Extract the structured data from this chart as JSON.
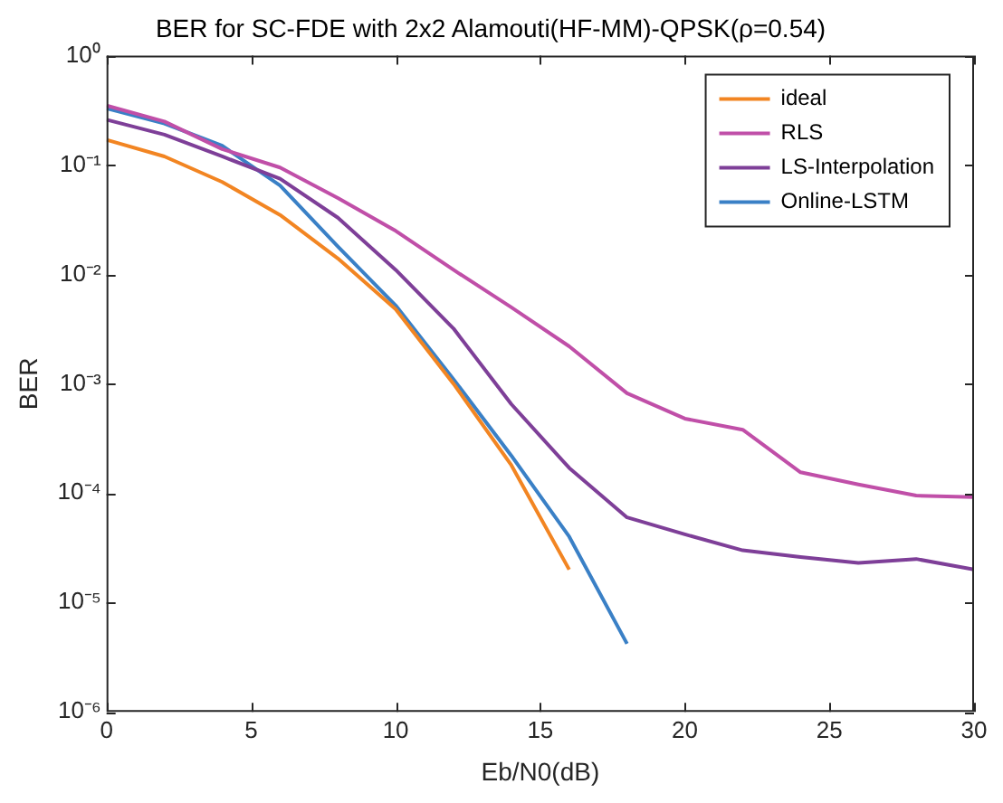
{
  "chart_data": {
    "type": "line",
    "title": "BER for SC-FDE with 2x2 Alamouti(HF-MM)-QPSK(ρ=0.54)",
    "xlabel": "Eb/N0(dB)",
    "ylabel": "BER",
    "log": "y",
    "grid": false,
    "legend": "top right",
    "marker": "none",
    "line_style": "solid",
    "xlim": [
      0,
      30
    ],
    "xticks": [
      0,
      5,
      10,
      15,
      20,
      25,
      30
    ],
    "ylim": [
      1e-06,
      1
    ],
    "yticks": [
      {
        "value": 1e-06,
        "label": "10⁻⁶"
      },
      {
        "value": 1e-05,
        "label": "10⁻⁵"
      },
      {
        "value": 0.0001,
        "label": "10⁻⁴"
      },
      {
        "value": 0.001,
        "label": "10⁻³"
      },
      {
        "value": 0.01,
        "label": "10⁻²"
      },
      {
        "value": 0.1,
        "label": "10⁻¹"
      },
      {
        "value": 1,
        "label": "10⁰"
      }
    ],
    "series": [
      {
        "name": "ideal",
        "color": "#f28522",
        "x": [
          0,
          2,
          4,
          6,
          8,
          10,
          12,
          14,
          16
        ],
        "values": [
          0.17,
          0.12,
          0.07,
          0.035,
          0.014,
          0.0048,
          0.001,
          0.00018,
          2e-05
        ]
      },
      {
        "name": "RLS",
        "color": "#c04fa8",
        "x": [
          0,
          2,
          4,
          6,
          8,
          10,
          12,
          14,
          16,
          18,
          20,
          22,
          24,
          26,
          28,
          30
        ],
        "values": [
          0.35,
          0.25,
          0.14,
          0.095,
          0.05,
          0.025,
          0.011,
          0.005,
          0.0022,
          0.00082,
          0.00048,
          0.00038,
          0.000155,
          0.00012,
          9.5e-05,
          9.2e-05
        ]
      },
      {
        "name": "LS-Interpolation",
        "color": "#7e3f98",
        "x": [
          0,
          2,
          4,
          6,
          8,
          10,
          12,
          14,
          16,
          18,
          20,
          22,
          24,
          26,
          28,
          30
        ],
        "values": [
          0.26,
          0.19,
          0.12,
          0.075,
          0.033,
          0.011,
          0.0032,
          0.00065,
          0.00017,
          6e-05,
          4.2e-05,
          3e-05,
          2.6e-05,
          2.3e-05,
          2.5e-05,
          2e-05
        ]
      },
      {
        "name": "Online-LSTM",
        "color": "#3a80c6",
        "x": [
          0,
          2,
          4,
          6,
          8,
          10,
          12,
          14,
          16,
          18
        ],
        "values": [
          0.33,
          0.24,
          0.15,
          0.065,
          0.018,
          0.0052,
          0.0011,
          0.00022,
          4e-05,
          4.2e-06
        ]
      }
    ]
  }
}
